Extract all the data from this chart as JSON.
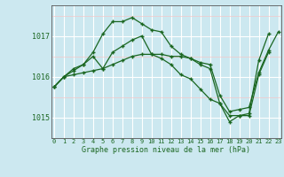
{
  "title": "Graphe pression niveau de la mer (hPa)",
  "background_color": "#cce8f0",
  "grid_major_color": "#ffffff",
  "grid_minor_color": "#f5c8c8",
  "line_color": "#1a6620",
  "x_labels": [
    "0",
    "1",
    "2",
    "3",
    "4",
    "5",
    "6",
    "7",
    "8",
    "9",
    "10",
    "11",
    "12",
    "13",
    "14",
    "15",
    "16",
    "17",
    "18",
    "19",
    "20",
    "21",
    "22",
    "23"
  ],
  "yticks": [
    1015,
    1016,
    1017
  ],
  "ylim": [
    1014.5,
    1017.75
  ],
  "xlim": [
    -0.3,
    23.3
  ],
  "series": [
    [
      1015.75,
      1016.0,
      1016.15,
      1016.3,
      1016.6,
      1017.05,
      1017.35,
      1017.35,
      1017.45,
      1017.3,
      1017.15,
      1017.1,
      1016.75,
      1016.55,
      1016.45,
      1016.3,
      1016.2,
      1015.35,
      1014.9,
      1015.05,
      1015.1,
      1016.4,
      1017.05,
      null
    ],
    [
      1015.75,
      1016.0,
      1016.2,
      1016.3,
      1016.5,
      1016.2,
      1016.6,
      1016.75,
      1016.9,
      1017.0,
      1016.55,
      1016.45,
      1016.3,
      1016.05,
      1015.95,
      1015.7,
      1015.45,
      1015.35,
      1015.05,
      1015.05,
      1015.05,
      1016.05,
      1016.6,
      null
    ],
    [
      1015.75,
      1016.0,
      1016.05,
      1016.1,
      1016.15,
      1016.2,
      1016.3,
      1016.4,
      1016.5,
      1016.55,
      1016.55,
      1016.55,
      1016.5,
      1016.5,
      1016.45,
      1016.35,
      1016.3,
      1015.55,
      1015.15,
      1015.2,
      1015.25,
      1016.1,
      1016.65,
      1017.1
    ]
  ]
}
